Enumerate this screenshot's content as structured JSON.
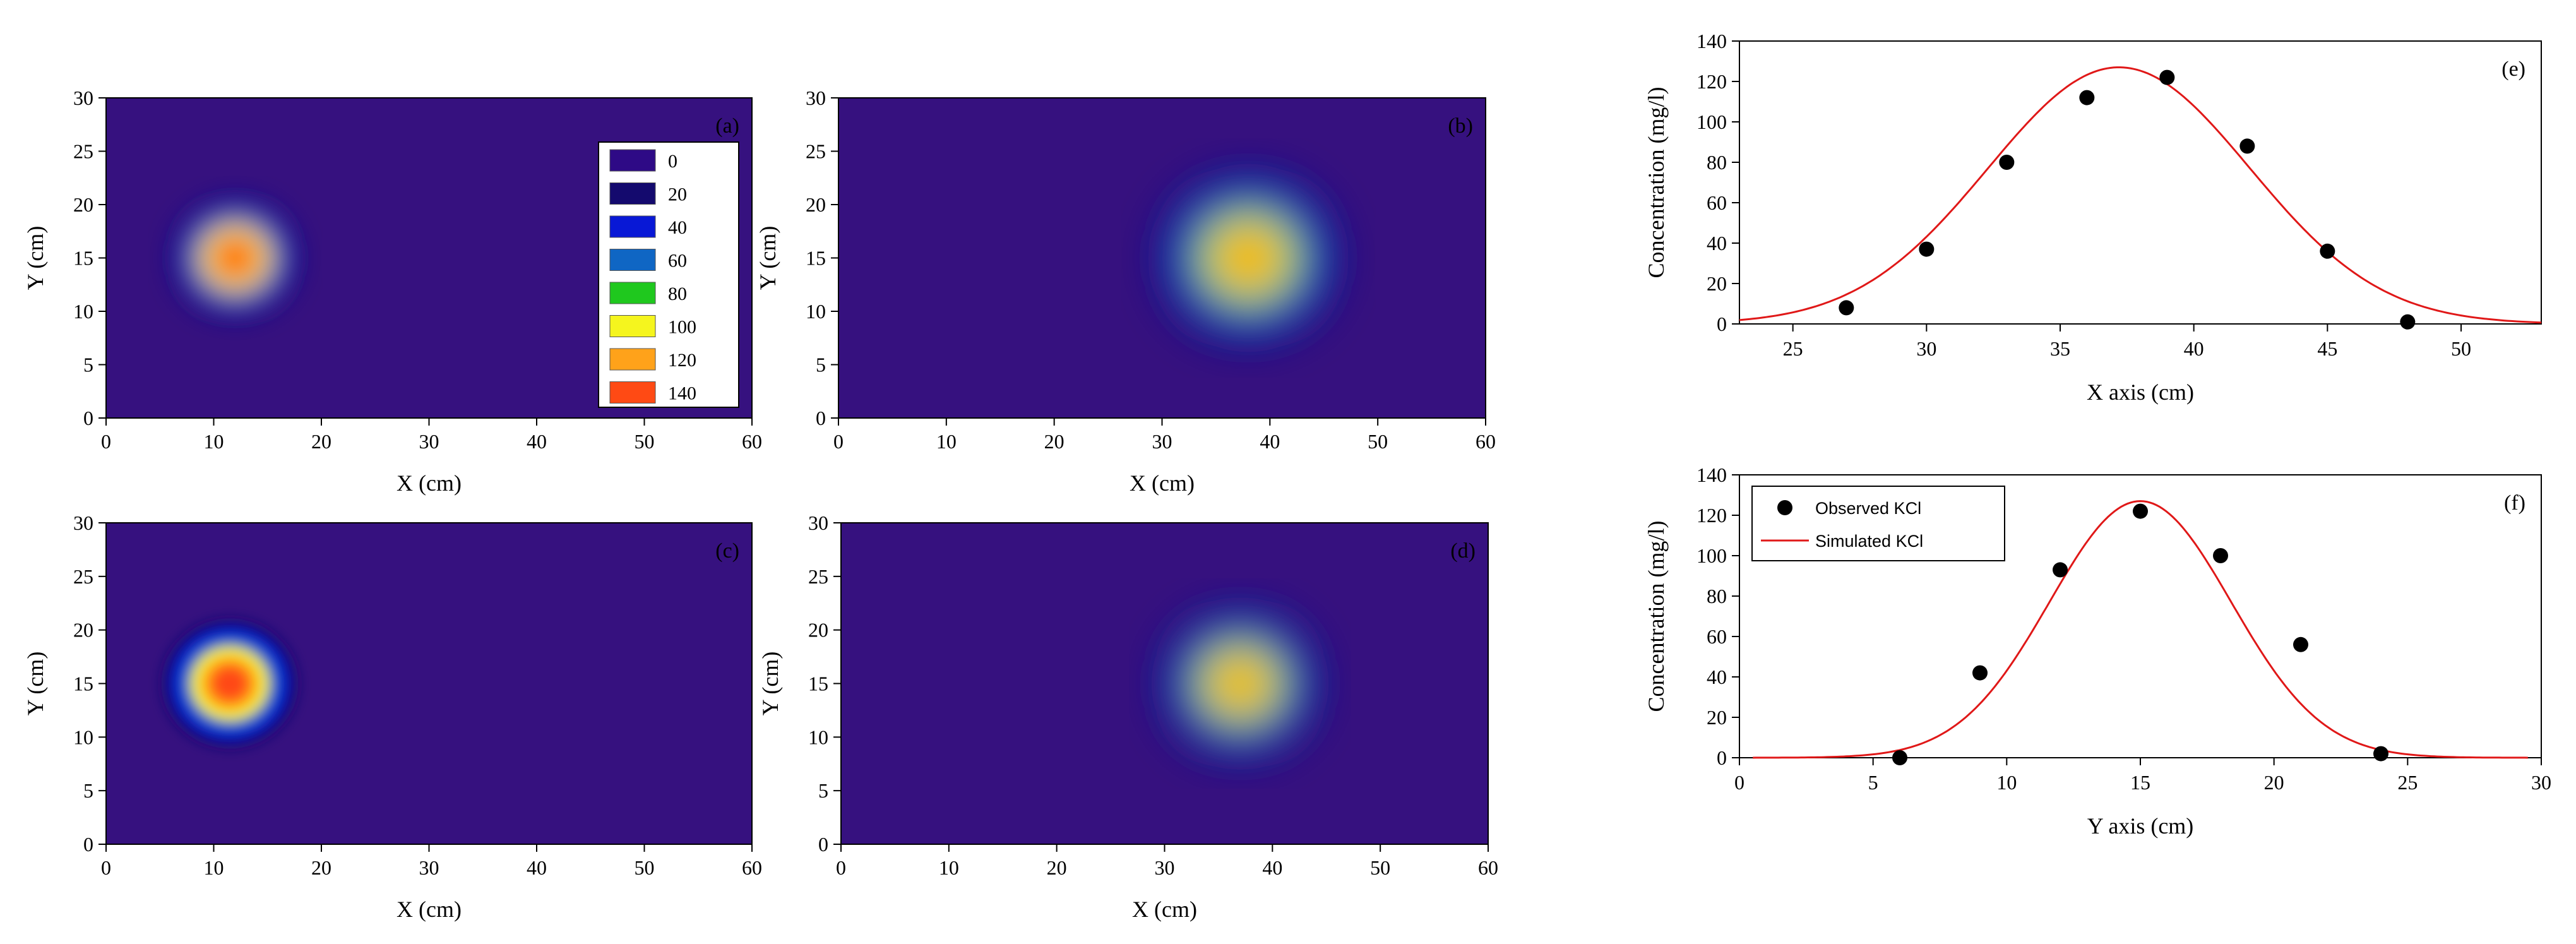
{
  "colormap": {
    "colors": [
      "#2e0a86",
      "#140a6e",
      "#0818d6",
      "#0f66c4",
      "#1fc81e",
      "#f5f51e",
      "#ffa21a",
      "#ff4a14"
    ],
    "background": "#36117f"
  },
  "chart_data": [
    {
      "type": "heatmap",
      "panel_label": "(a)",
      "xlabel": "X (cm)",
      "ylabel": "Y (cm)",
      "xlim": [
        0,
        60
      ],
      "ylim": [
        0,
        30
      ],
      "xticks": [
        "0",
        "10",
        "20",
        "30",
        "40",
        "50",
        "60"
      ],
      "yticks": [
        "0",
        "5",
        "10",
        "15",
        "20",
        "25",
        "30"
      ],
      "plume": {
        "center_x": 12,
        "center_y": 15,
        "radius": 5.5,
        "peak": 145
      },
      "legend": {
        "levels": [
          "0",
          "20",
          "40",
          "60",
          "80",
          "100",
          "120",
          "140"
        ]
      }
    },
    {
      "type": "heatmap",
      "panel_label": "(b)",
      "xlabel": "X (cm)",
      "ylabel": "Y (cm)",
      "xlim": [
        0,
        60
      ],
      "ylim": [
        0,
        30
      ],
      "xticks": [
        "0",
        "10",
        "20",
        "30",
        "40",
        "50",
        "60"
      ],
      "yticks": [
        "0",
        "5",
        "10",
        "15",
        "20",
        "25",
        "30"
      ],
      "plume": {
        "center_x": 38,
        "center_y": 15,
        "radius": 8,
        "peak": 125
      }
    },
    {
      "type": "heatmap",
      "panel_label": "(c)",
      "xlabel": "X (cm)",
      "ylabel": "Y (cm)",
      "xlim": [
        0,
        60
      ],
      "ylim": [
        0,
        30
      ],
      "xticks": [
        "0",
        "10",
        "20",
        "30",
        "40",
        "50",
        "60"
      ],
      "yticks": [
        "0",
        "5",
        "10",
        "15",
        "20",
        "25",
        "30"
      ],
      "plume": {
        "center_x": 11.5,
        "center_y": 15,
        "radius": 6,
        "peak": 145
      }
    },
    {
      "type": "heatmap",
      "panel_label": "(d)",
      "xlabel": "X (cm)",
      "ylabel": "Y (cm)",
      "xlim": [
        0,
        60
      ],
      "ylim": [
        0,
        30
      ],
      "xticks": [
        "0",
        "10",
        "20",
        "30",
        "40",
        "50",
        "60"
      ],
      "yticks": [
        "0",
        "5",
        "10",
        "15",
        "20",
        "25",
        "30"
      ],
      "plume": {
        "center_x": 37,
        "center_y": 15,
        "radius": 7,
        "peak": 125
      }
    },
    {
      "type": "line",
      "panel_label": "(e)",
      "xlabel": "X axis (cm)",
      "ylabel": "Concentration (mg/l)",
      "xlim": [
        23,
        53
      ],
      "ylim": [
        0,
        140
      ],
      "xticks": [
        25,
        30,
        35,
        40,
        45,
        50
      ],
      "yticks": [
        0,
        20,
        40,
        60,
        80,
        100,
        120,
        140
      ],
      "observed": {
        "x": [
          27,
          30,
          33,
          36,
          39,
          42,
          45,
          48
        ],
        "y": [
          8,
          37,
          80,
          112,
          122,
          88,
          36,
          1
        ]
      },
      "simulated": {
        "peak": 127,
        "mean": 37.2,
        "sigma": 4.9,
        "x_start": 23,
        "x_end": 53
      }
    },
    {
      "type": "line",
      "panel_label": "(f)",
      "xlabel": "Y axis (cm)",
      "ylabel": "Concentration (mg/l)",
      "xlim": [
        0,
        30
      ],
      "ylim": [
        0,
        140
      ],
      "xticks": [
        0,
        5,
        10,
        15,
        20,
        25,
        30
      ],
      "yticks": [
        0,
        20,
        40,
        60,
        80,
        100,
        120,
        140
      ],
      "observed": {
        "x": [
          6,
          9,
          12,
          15,
          18,
          21,
          24
        ],
        "y": [
          0,
          42,
          93,
          122,
          100,
          56,
          2
        ]
      },
      "simulated": {
        "peak": 127,
        "mean": 15,
        "sigma": 3.4,
        "x_start": 0.5,
        "x_end": 29.5
      },
      "legend": {
        "observed_label": "Observed KCl",
        "simulated_label": "Simulated KCl"
      }
    }
  ]
}
